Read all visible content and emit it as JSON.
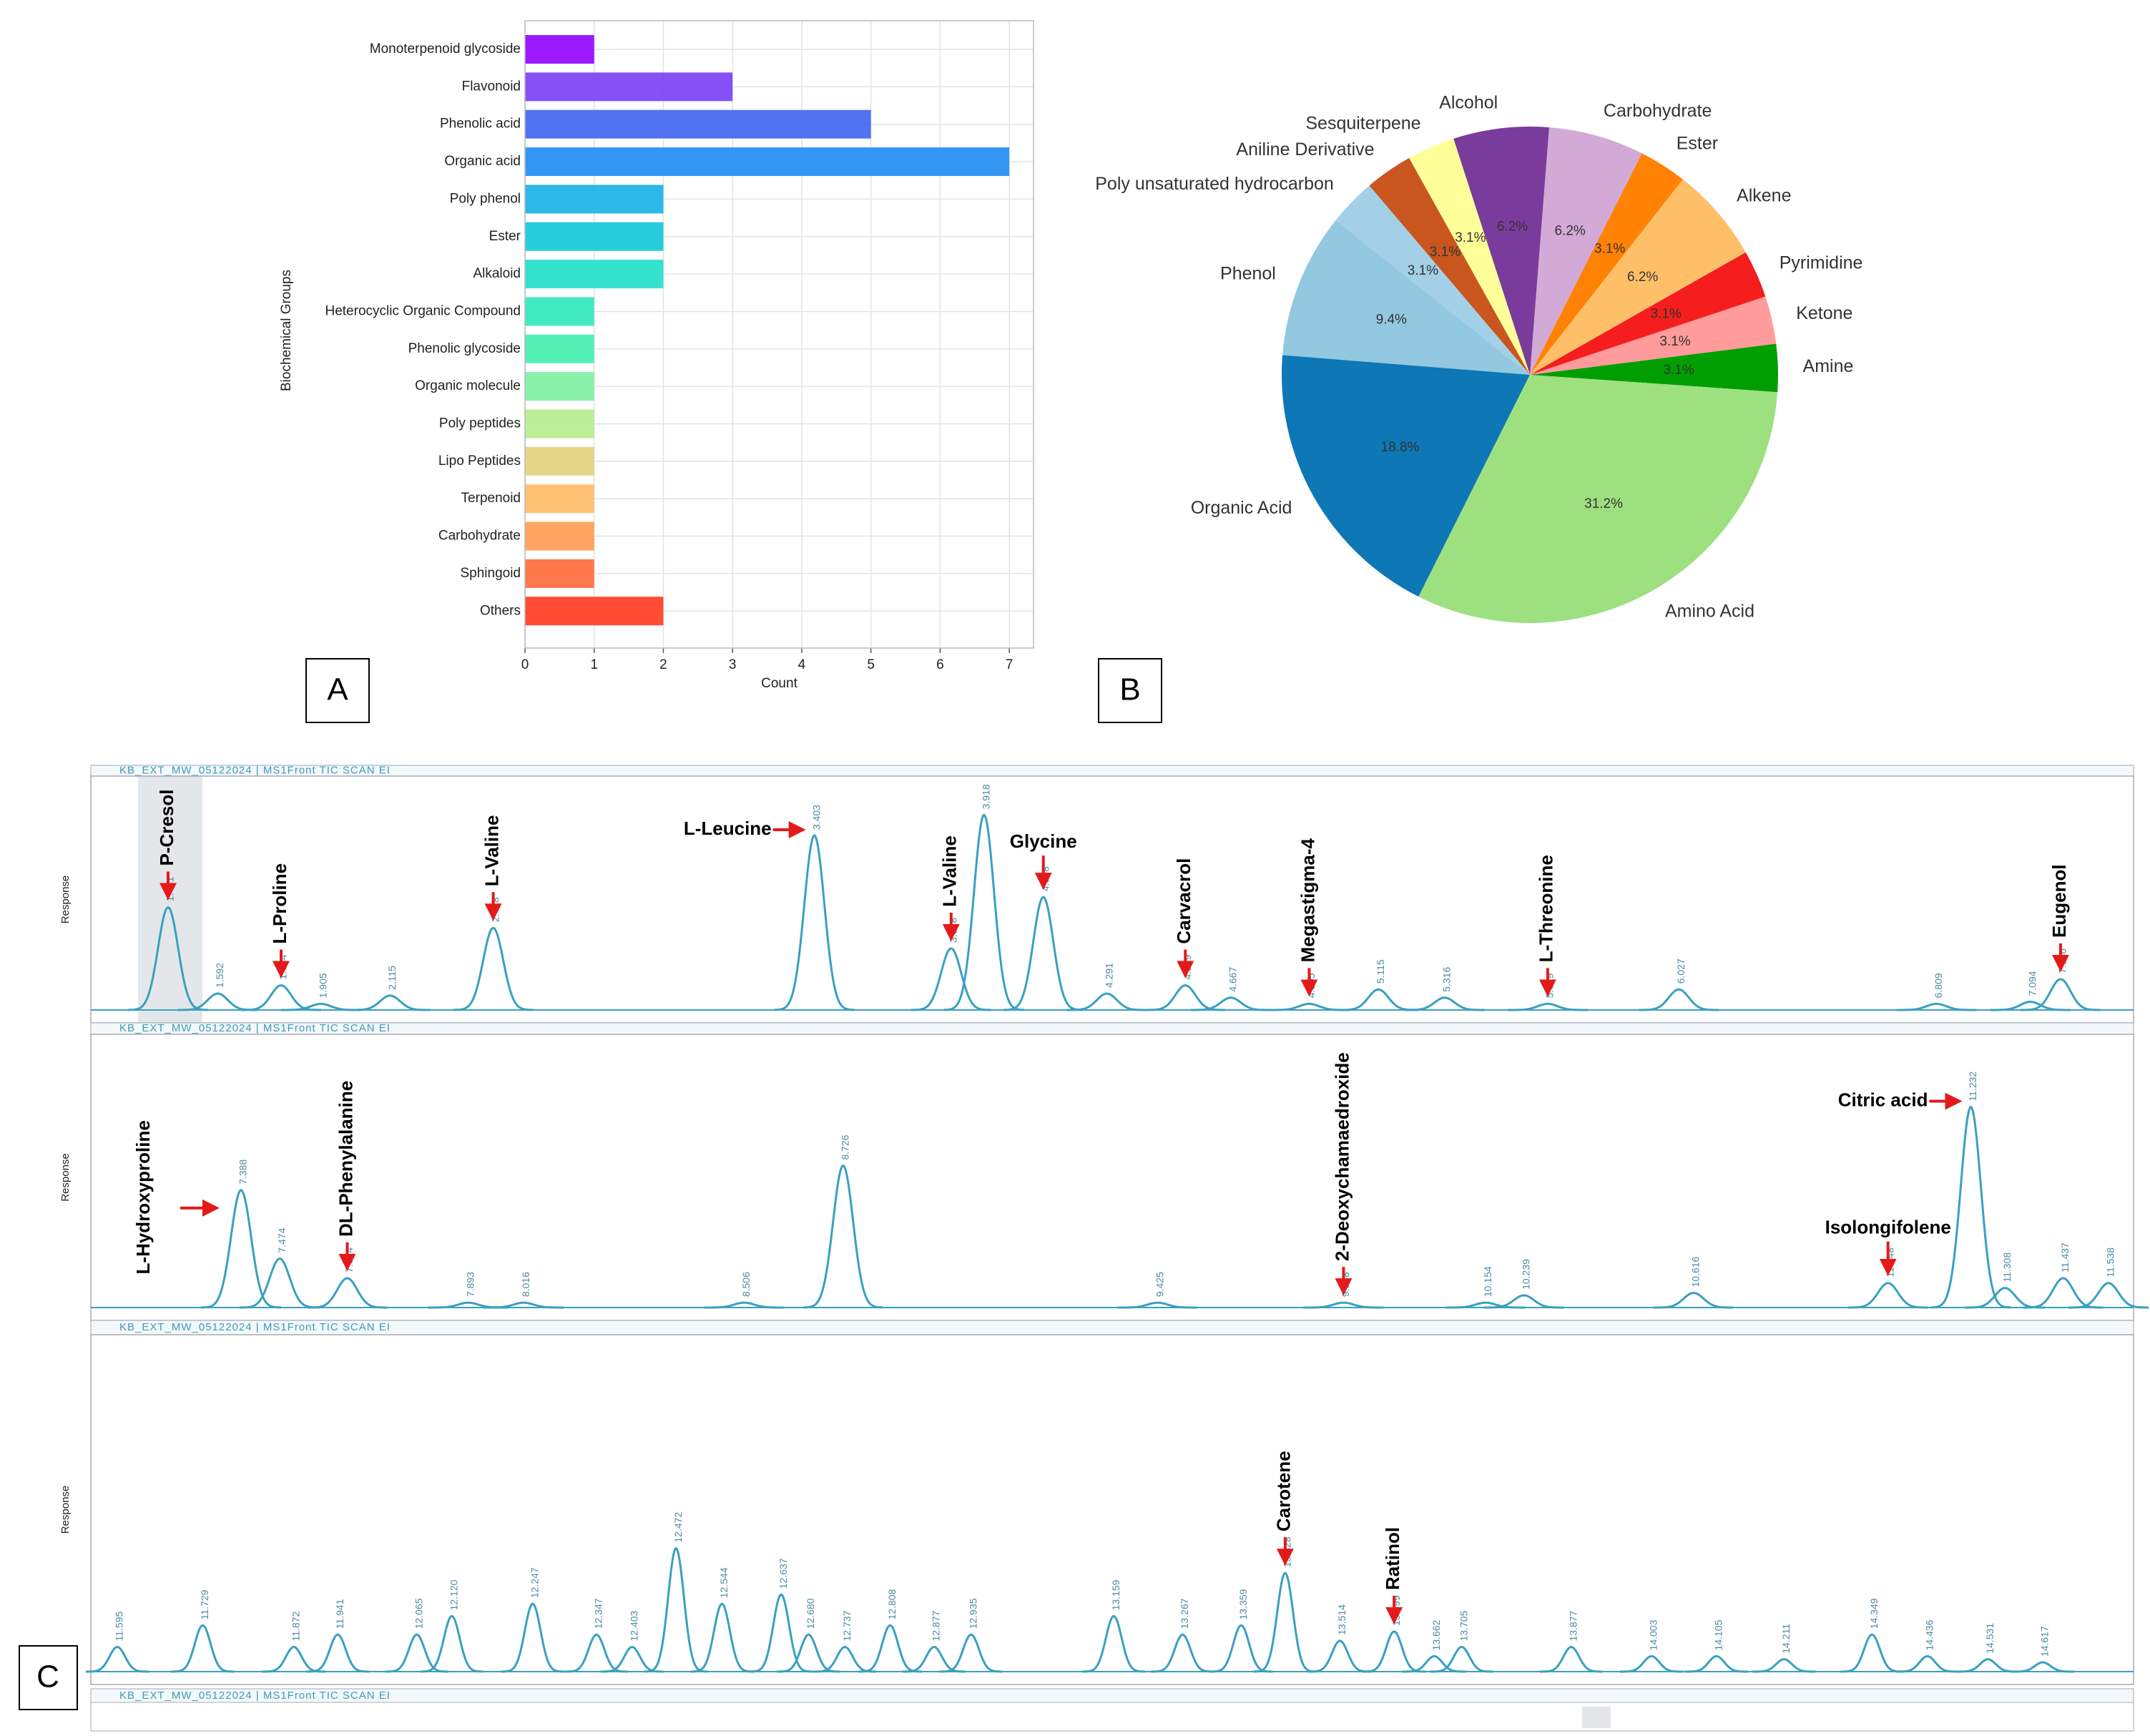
{
  "chart_data": [
    {
      "type": "bar",
      "orientation": "horizontal",
      "panel": "A",
      "categories": [
        "Monoterpenoid glycoside",
        "Flavonoid",
        "Phenolic acid",
        "Organic acid",
        "Poly phenol",
        "Ester",
        "Alkaloid",
        "Heterocyclic Organic Compound",
        "Phenolic glycoside",
        "Organic molecule",
        "Poly peptides",
        "Lipo Peptides",
        "Terpenoid",
        "Carbohydrate",
        "Sphingoid",
        "Others"
      ],
      "values": [
        1,
        3,
        5,
        7,
        2,
        2,
        2,
        1,
        1,
        1,
        1,
        1,
        1,
        1,
        1,
        2
      ],
      "colors": [
        "#9100ff",
        "#7a3cf5",
        "#3f64f0",
        "#1e8bf3",
        "#15b0e6",
        "#10c8d8",
        "#1ee0c8",
        "#2ee8bb",
        "#40f0ad",
        "#7cf0a0",
        "#b4ec8c",
        "#e2d07a",
        "#ffbb66",
        "#ff9a50",
        "#ff6a3a",
        "#ff3a1e"
      ],
      "xlabel": "Count",
      "ylabel": "Biochemical Groups",
      "xlim": [
        0,
        7.35
      ],
      "xticks": [
        0,
        1,
        2,
        3,
        4,
        5,
        6,
        7
      ],
      "grid": true
    },
    {
      "type": "pie",
      "panel": "B",
      "startangle": -4,
      "categories": [
        "Amine",
        "Ketone",
        "Pyrimidine",
        "Alkene",
        "Ester",
        "Carbohydrate",
        "Alcohol",
        "Sesquiterpene",
        "Aniline Derivative",
        "Poly unsaturated hydrocarbon",
        "Phenol",
        "Organic Acid",
        "Amino Acid"
      ],
      "values": [
        3.1,
        3.1,
        3.1,
        6.2,
        3.1,
        6.2,
        6.2,
        3.1,
        3.1,
        3.1,
        9.4,
        18.8,
        31.2
      ],
      "value_labels": [
        "3.1%",
        "3.1%",
        "3.1%",
        "6.2%",
        "3.1%",
        "6.2%",
        "6.2%",
        "3.1%",
        "3.1%",
        "3.1%",
        "9.4%",
        "18.8%",
        "31.2%"
      ],
      "colors": [
        "#009e00",
        "#ff9b9b",
        "#f51d1d",
        "#ffbf69",
        "#ff8205",
        "#d3aad5",
        "#7a3c9c",
        "#ffff99",
        "#c9561f",
        "#a3d0e6",
        "#92c8e0",
        "#0e77b5",
        "#9de07f"
      ]
    },
    {
      "type": "chromatogram",
      "header": "KB_EXT_MW_05122024 | MS1Front TIC SCAN EI",
      "ylabel": "Response",
      "x": [
        1.441,
        1.592,
        1.784,
        1.905,
        2.115,
        2.428,
        3.403,
        3.818,
        3.918,
        4.098,
        4.291,
        4.529,
        4.667,
        4.905,
        5.115,
        5.316,
        5.629,
        6.027,
        6.809,
        7.094,
        7.186
      ],
      "values": [
        50,
        8,
        12,
        3,
        7,
        40,
        85,
        30,
        95,
        55,
        8,
        12,
        6,
        3,
        10,
        6,
        3,
        10,
        3,
        4,
        15
      ],
      "annotations": [
        {
          "text": "P-Cresol",
          "x": 1.441
        },
        {
          "text": "L-Proline",
          "x": 1.784
        },
        {
          "text": "L-Valine",
          "x": 2.428
        },
        {
          "text": "L-Leucine",
          "x": 3.403
        },
        {
          "text": "L-Valine",
          "x": 3.818
        },
        {
          "text": "Glycine",
          "x": 4.098
        },
        {
          "text": "Carvacrol",
          "x": 4.529
        },
        {
          "text": "Megastigma-4",
          "x": 4.905
        },
        {
          "text": "L-Threonine",
          "x": 5.629
        },
        {
          "text": "Eugenol",
          "x": 7.186
        }
      ]
    },
    {
      "type": "chromatogram",
      "header": "KB_EXT_MW_05122024 | MS1Front TIC SCAN EI",
      "ylabel": "Response",
      "x": [
        7.388,
        7.474,
        7.624,
        7.893,
        8.016,
        8.506,
        8.726,
        9.425,
        9.838,
        10.154,
        10.239,
        10.616,
        11.048,
        11.232,
        11.308,
        11.437,
        11.538
      ],
      "values": [
        48,
        20,
        12,
        2,
        2,
        2,
        58,
        2,
        2,
        2,
        5,
        6,
        10,
        82,
        8,
        12,
        10
      ],
      "annotations": [
        {
          "text": "L-Hydroxyproline",
          "x": 7.388
        },
        {
          "text": "DL-Phenylalanine",
          "x": 7.624
        },
        {
          "text": "2-Deoxychamaedroxide",
          "x": 9.838
        },
        {
          "text": "Citric acid",
          "x": 11.232
        },
        {
          "text": "Isolongifolene",
          "x": 11.048
        }
      ]
    },
    {
      "type": "chromatogram",
      "panel": "C",
      "header": "KB_EXT_MW_05122024 | MS1Front TIC SCAN EI",
      "ylabel": "Response",
      "x": [
        11.595,
        11.729,
        11.872,
        11.941,
        12.065,
        {
          "value": 12.12,
          "label": "12.120"
        },
        12.247,
        12.347,
        12.403,
        12.472,
        12.544,
        12.637,
        {
          "value": 12.68,
          "label": "12.680"
        },
        12.737,
        12.808,
        12.877,
        12.935,
        13.159,
        13.267,
        13.359,
        13.428,
        13.514,
        13.599,
        13.662,
        13.705,
        13.877,
        14.003,
        14.105,
        14.211,
        14.349,
        14.436,
        14.531,
        14.617
      ],
      "values": [
        8,
        15,
        8,
        12,
        12,
        18,
        22,
        12,
        8,
        40,
        22,
        25,
        12,
        8,
        15,
        8,
        12,
        18,
        12,
        15,
        32,
        10,
        13,
        5,
        8,
        8,
        5,
        5,
        4,
        12,
        5,
        4,
        3
      ],
      "annotations": [
        {
          "text": "Carotene",
          "x": 13.428
        },
        {
          "text": "Ratinol",
          "x": 13.599
        }
      ]
    }
  ],
  "trailing_header": "KB_EXT_MW_05122024 | MS1Front TIC SCAN EI"
}
